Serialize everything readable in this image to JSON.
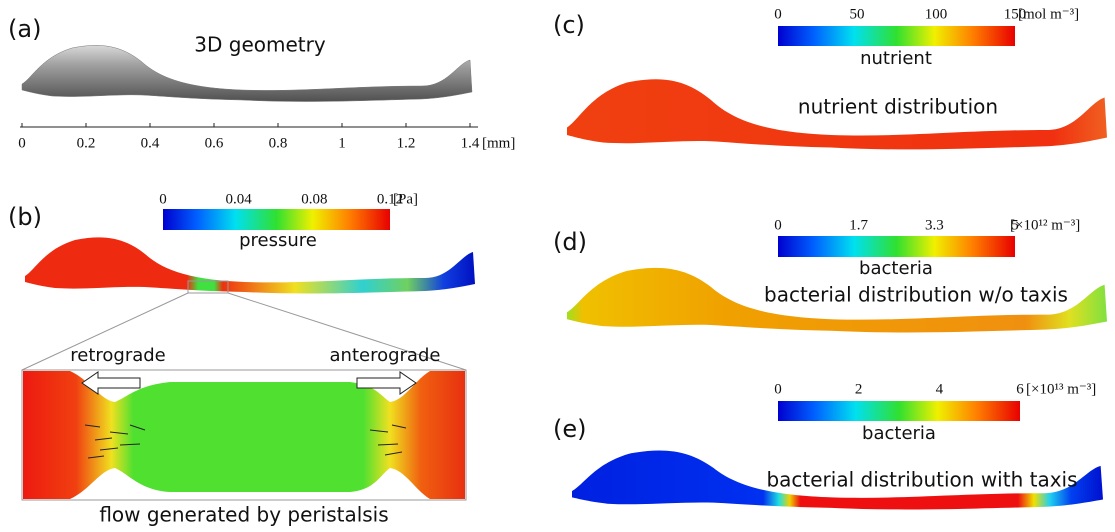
{
  "panels": [
    {
      "label": "(a)",
      "title": "3D geometry",
      "axis": {
        "ticks": [
          0,
          0.2,
          0.4,
          0.6,
          0.8,
          1.0,
          1.2,
          1.4
        ],
        "unit": "[mm]"
      }
    },
    {
      "label": "(b)",
      "colorbar": {
        "ticks": [
          0,
          0.04,
          0.08,
          0.12
        ],
        "unit": "[Pa]",
        "title": "pressure"
      },
      "zoom": {
        "left": "retrograde",
        "right": "anterograde",
        "caption": "flow generated by peristalsis"
      }
    },
    {
      "label": "(c)",
      "colorbar": {
        "ticks": [
          0,
          50,
          100,
          150
        ],
        "unit": "[mol m⁻³]",
        "title": "nutrient"
      },
      "title": "nutrient distribution"
    },
    {
      "label": "(d)",
      "colorbar": {
        "ticks": [
          0,
          1.7,
          3.3,
          5
        ],
        "unit": "[×10¹² m⁻³]",
        "title": "bacteria"
      },
      "title": "bacterial distribution w/o taxis"
    },
    {
      "label": "(e)",
      "colorbar": {
        "ticks": [
          0,
          2,
          4,
          6
        ],
        "unit": "[×10¹³ m⁻³]",
        "title": "bacteria"
      },
      "title": "bacterial distribution with taxis"
    }
  ]
}
